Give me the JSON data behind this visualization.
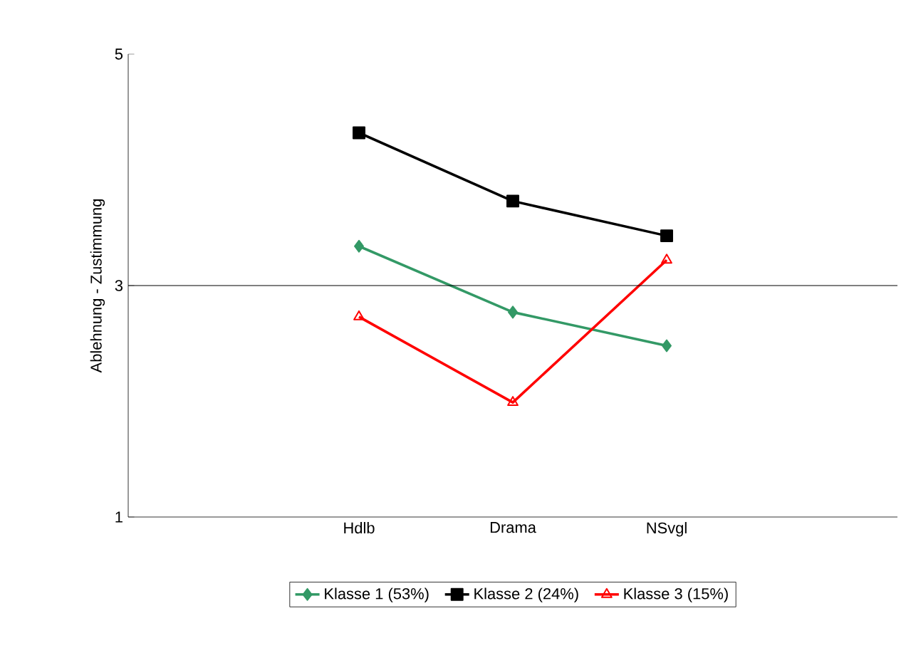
{
  "chart_data": {
    "type": "line",
    "ylabel": "Ablehnung - Zustimmung",
    "categories": [
      null,
      "Hdlb",
      "Drama",
      "NSvgl",
      null
    ],
    "ylim": [
      1,
      5
    ],
    "yticks": [
      1,
      3,
      5
    ],
    "grid": false,
    "legend": "bottom",
    "ref_lines": [
      {
        "axis": "y",
        "value": 3,
        "color": "#000000"
      }
    ],
    "series": [
      {
        "name": "Klasse 1 (53%)",
        "color": "#339966",
        "marker": "diamond",
        "values": [
          null,
          3.34,
          2.77,
          2.48,
          null
        ]
      },
      {
        "name": "Klasse 2 (24%)",
        "color": "#000000",
        "marker": "square",
        "values": [
          null,
          4.32,
          3.73,
          3.43,
          null
        ]
      },
      {
        "name": "Klasse 3 (15%)",
        "color": "#ff0000",
        "marker": "triangle",
        "values": [
          null,
          2.73,
          1.99,
          3.22,
          null
        ]
      }
    ]
  }
}
